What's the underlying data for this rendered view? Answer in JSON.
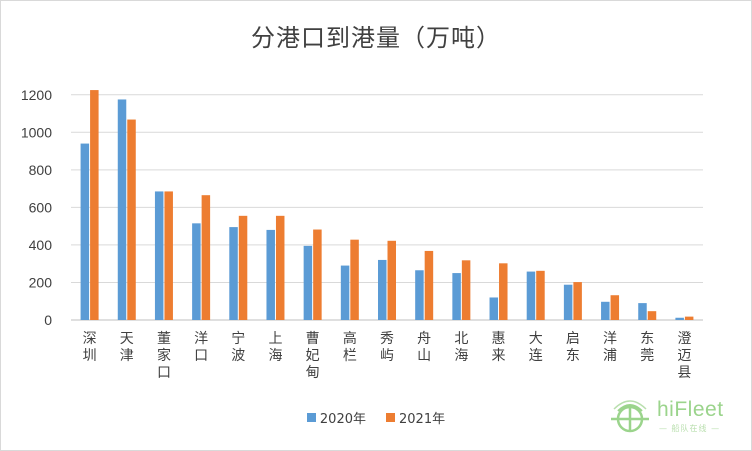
{
  "chart_data": {
    "type": "bar",
    "title": "分港口到港量（万吨）",
    "categories": [
      [
        "深",
        "圳"
      ],
      [
        "天",
        "津"
      ],
      [
        "董",
        "家",
        "口"
      ],
      [
        "洋",
        "口"
      ],
      [
        "宁",
        "波"
      ],
      [
        "上",
        "海"
      ],
      [
        "曹",
        "妃",
        "甸"
      ],
      [
        "高",
        "栏"
      ],
      [
        "秀",
        "屿"
      ],
      [
        "舟",
        "山"
      ],
      [
        "北",
        "海"
      ],
      [
        "惠",
        "来"
      ],
      [
        "大",
        "连"
      ],
      [
        "启",
        "东"
      ],
      [
        "洋",
        "浦"
      ],
      [
        "东",
        "莞"
      ],
      [
        "澄",
        "迈",
        "县"
      ]
    ],
    "series": [
      {
        "name": "2020年",
        "color": "#5b9bd5",
        "values": [
          940,
          1175,
          685,
          515,
          495,
          480,
          395,
          290,
          320,
          265,
          250,
          120,
          258,
          188,
          97,
          90,
          12
        ]
      },
      {
        "name": "2021年",
        "color": "#ed7d31",
        "values": [
          1225,
          1068,
          685,
          665,
          555,
          555,
          482,
          428,
          422,
          368,
          318,
          302,
          262,
          202,
          132,
          47,
          18
        ]
      }
    ],
    "yticks": [
      "0",
      "200",
      "400",
      "600",
      "800",
      "1000",
      "1200"
    ],
    "ylim": [
      0,
      1300
    ],
    "grid": true,
    "legend_position": "bottom"
  },
  "watermark": {
    "brand": "hiFleet",
    "tagline": "— 船队在线 —",
    "icon": "hifleet-globe-icon"
  }
}
